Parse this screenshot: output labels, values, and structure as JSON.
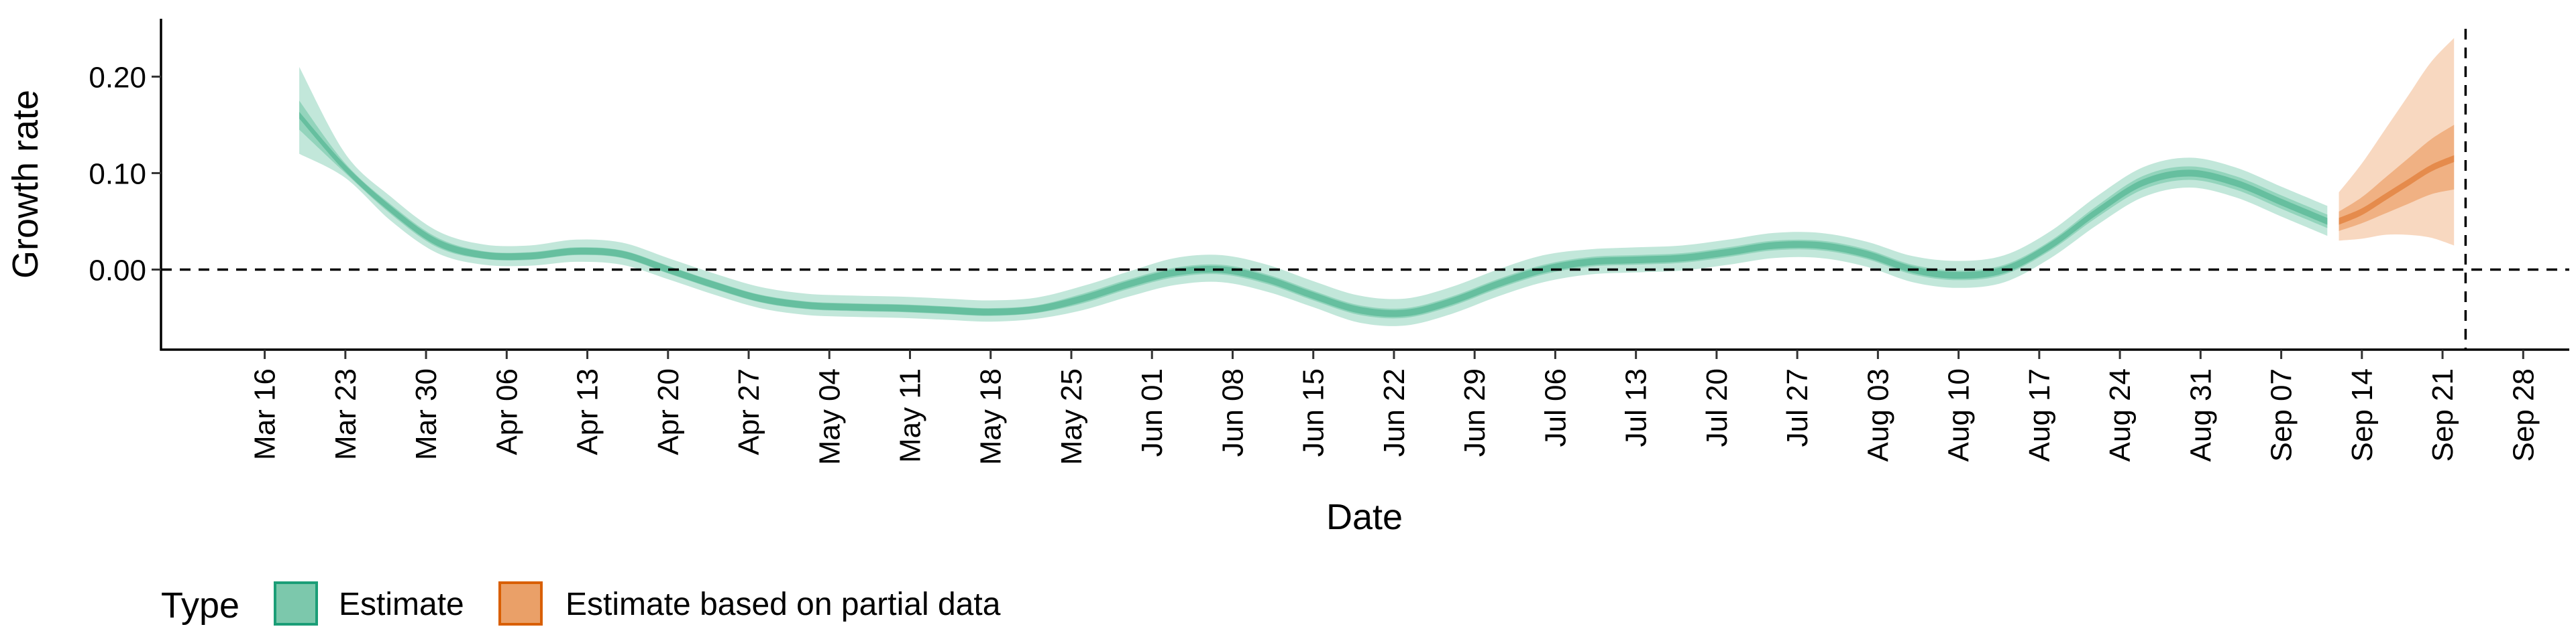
{
  "chart_data": {
    "type": "area",
    "title": "",
    "xlabel": "Date",
    "ylabel": "Growth rate",
    "x_range": [
      "2020-03-07",
      "2020-10-02"
    ],
    "ylim": [
      -0.083,
      0.26
    ],
    "y_ticks": [
      0.0,
      0.1,
      0.2
    ],
    "y_tick_labels": [
      "0.00",
      "0.10",
      "0.20"
    ],
    "x_ticks": [
      "2020-03-16",
      "2020-03-23",
      "2020-03-30",
      "2020-04-06",
      "2020-04-13",
      "2020-04-20",
      "2020-04-27",
      "2020-05-04",
      "2020-05-11",
      "2020-05-18",
      "2020-05-25",
      "2020-06-01",
      "2020-06-08",
      "2020-06-15",
      "2020-06-22",
      "2020-06-29",
      "2020-07-06",
      "2020-07-13",
      "2020-07-20",
      "2020-07-27",
      "2020-08-03",
      "2020-08-10",
      "2020-08-17",
      "2020-08-24",
      "2020-08-31",
      "2020-09-07",
      "2020-09-14",
      "2020-09-21",
      "2020-09-28"
    ],
    "x_tick_labels": [
      "Mar 16",
      "Mar 23",
      "Mar 30",
      "Apr 06",
      "Apr 13",
      "Apr 20",
      "Apr 27",
      "May 04",
      "May 11",
      "May 18",
      "May 25",
      "Jun 01",
      "Jun 08",
      "Jun 15",
      "Jun 22",
      "Jun 29",
      "Jul 06",
      "Jul 13",
      "Jul 20",
      "Jul 27",
      "Aug 03",
      "Aug 10",
      "Aug 17",
      "Aug 24",
      "Aug 31",
      "Sep 07",
      "Sep 14",
      "Sep 21",
      "Sep 28"
    ],
    "reference_lines": {
      "horizontal_y": 0.0,
      "vertical_x": "2020-09-23"
    },
    "grid": false,
    "legend": {
      "title": "Type",
      "position": "bottom-left",
      "entries": [
        "Estimate",
        "Estimate based on partial data"
      ]
    },
    "colors": {
      "estimate_outer": "#c2e7da",
      "estimate_mid": "#93d4bc",
      "estimate_inner": "#66bf9f",
      "estimate_legend_fill": "#7cc8ac",
      "estimate_legend_border": "#1b9e77",
      "partial_outer": "#f8d8c0",
      "partial_mid": "#f0b183",
      "partial_inner": "#e58b4c",
      "partial_legend_fill": "#eaa068",
      "partial_legend_border": "#d95f02"
    },
    "series": [
      {
        "name": "Estimate",
        "x": [
          "2020-03-19",
          "2020-03-23",
          "2020-03-27",
          "2020-03-31",
          "2020-04-04",
          "2020-04-08",
          "2020-04-12",
          "2020-04-16",
          "2020-04-20",
          "2020-04-24",
          "2020-04-28",
          "2020-05-02",
          "2020-05-06",
          "2020-05-10",
          "2020-05-14",
          "2020-05-18",
          "2020-05-22",
          "2020-05-26",
          "2020-05-30",
          "2020-06-03",
          "2020-06-07",
          "2020-06-11",
          "2020-06-15",
          "2020-06-19",
          "2020-06-23",
          "2020-06-27",
          "2020-07-01",
          "2020-07-05",
          "2020-07-09",
          "2020-07-13",
          "2020-07-17",
          "2020-07-21",
          "2020-07-25",
          "2020-07-29",
          "2020-08-02",
          "2020-08-06",
          "2020-08-10",
          "2020-08-14",
          "2020-08-18",
          "2020-08-22",
          "2020-08-26",
          "2020-08-30",
          "2020-09-03",
          "2020-09-07",
          "2020-09-11"
        ],
        "median": [
          0.16,
          0.105,
          0.062,
          0.028,
          0.015,
          0.014,
          0.019,
          0.016,
          0.0,
          -0.016,
          -0.03,
          -0.037,
          -0.039,
          -0.04,
          -0.042,
          -0.044,
          -0.041,
          -0.03,
          -0.015,
          -0.003,
          0.0,
          -0.01,
          -0.027,
          -0.042,
          -0.045,
          -0.033,
          -0.015,
          0.0,
          0.008,
          0.01,
          0.012,
          0.018,
          0.025,
          0.025,
          0.016,
          0.0,
          -0.006,
          0.0,
          0.025,
          0.06,
          0.09,
          0.1,
          0.09,
          0.07,
          0.05
        ],
        "q25": [
          0.145,
          0.1,
          0.057,
          0.023,
          0.011,
          0.01,
          0.015,
          0.012,
          -0.004,
          -0.02,
          -0.034,
          -0.041,
          -0.043,
          -0.044,
          -0.046,
          -0.048,
          -0.045,
          -0.035,
          -0.02,
          -0.008,
          -0.005,
          -0.015,
          -0.032,
          -0.047,
          -0.05,
          -0.038,
          -0.02,
          -0.005,
          0.003,
          0.005,
          0.007,
          0.013,
          0.02,
          0.02,
          0.011,
          -0.005,
          -0.011,
          -0.005,
          0.02,
          0.054,
          0.083,
          0.093,
          0.083,
          0.063,
          0.043
        ],
        "q75": [
          0.175,
          0.11,
          0.067,
          0.033,
          0.019,
          0.018,
          0.023,
          0.02,
          0.004,
          -0.012,
          -0.026,
          -0.033,
          -0.035,
          -0.036,
          -0.038,
          -0.04,
          -0.037,
          -0.025,
          -0.01,
          0.002,
          0.005,
          -0.005,
          -0.022,
          -0.037,
          -0.04,
          -0.028,
          -0.01,
          0.005,
          0.013,
          0.015,
          0.017,
          0.023,
          0.03,
          0.03,
          0.021,
          0.005,
          -0.001,
          0.005,
          0.03,
          0.066,
          0.097,
          0.107,
          0.097,
          0.077,
          0.057
        ],
        "lower90": [
          0.12,
          0.095,
          0.05,
          0.017,
          0.005,
          0.004,
          0.008,
          0.005,
          -0.01,
          -0.026,
          -0.04,
          -0.047,
          -0.049,
          -0.05,
          -0.052,
          -0.054,
          -0.051,
          -0.042,
          -0.028,
          -0.016,
          -0.013,
          -0.023,
          -0.039,
          -0.055,
          -0.058,
          -0.046,
          -0.028,
          -0.013,
          -0.005,
          -0.003,
          -0.001,
          0.005,
          0.012,
          0.012,
          0.003,
          -0.013,
          -0.019,
          -0.013,
          0.012,
          0.046,
          0.075,
          0.085,
          0.075,
          0.055,
          0.035
        ],
        "upper90": [
          0.21,
          0.12,
          0.075,
          0.04,
          0.026,
          0.025,
          0.031,
          0.028,
          0.012,
          -0.004,
          -0.018,
          -0.025,
          -0.027,
          -0.028,
          -0.03,
          -0.032,
          -0.029,
          -0.017,
          -0.002,
          0.012,
          0.015,
          0.005,
          -0.012,
          -0.027,
          -0.03,
          -0.018,
          0.0,
          0.015,
          0.021,
          0.023,
          0.025,
          0.031,
          0.038,
          0.038,
          0.029,
          0.014,
          0.009,
          0.015,
          0.04,
          0.076,
          0.106,
          0.116,
          0.106,
          0.086,
          0.066
        ]
      },
      {
        "name": "Estimate based on partial data",
        "x": [
          "2020-09-12",
          "2020-09-14",
          "2020-09-16",
          "2020-09-18",
          "2020-09-20",
          "2020-09-22"
        ],
        "median": [
          0.05,
          0.06,
          0.075,
          0.09,
          0.105,
          0.115
        ],
        "q25": [
          0.04,
          0.048,
          0.058,
          0.068,
          0.078,
          0.083
        ],
        "q75": [
          0.06,
          0.075,
          0.095,
          0.115,
          0.135,
          0.15
        ],
        "lower90": [
          0.03,
          0.032,
          0.036,
          0.036,
          0.033,
          0.025
        ],
        "upper90": [
          0.08,
          0.11,
          0.145,
          0.18,
          0.215,
          0.24
        ]
      }
    ]
  }
}
